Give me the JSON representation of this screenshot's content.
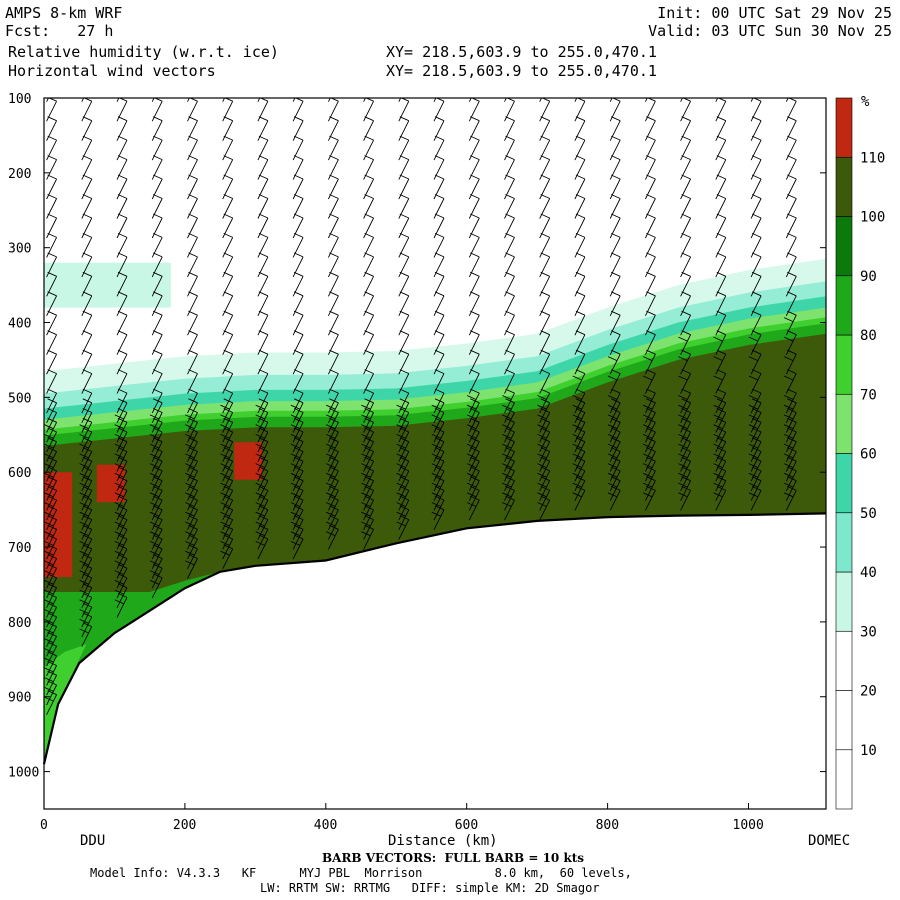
{
  "header": {
    "model": "AMPS 8-km WRF",
    "fcst": "Fcst:   27 h",
    "field1": "Relative humidity (w.r.t. ice)",
    "field2": "Horizontal wind vectors",
    "xy1": "XY= 218.5,603.9 to 255.0,470.1",
    "xy2": "XY= 218.5,603.9 to 255.0,470.1",
    "init": "Init: 00 UTC Sat 29 Nov 25",
    "valid": "Valid: 03 UTC Sun 30 Nov 25"
  },
  "footer": {
    "barb_note": "BARB VECTORS:  FULL BARB = 10 kts",
    "model_info": "Model Info: V4.3.3   KF      MYJ PBL  Morrison          8.0 km,  60 levels,",
    "physics": "LW: RRTM SW: RRTMG   DIFF: simple KM: 2D Smagor"
  },
  "colors": {
    "bands": [
      "#ffffff",
      "#ffffff",
      "#ffffff",
      "#c8f7e6",
      "#7de8cc",
      "#3ed6a8",
      "#7ee36e",
      "#3fcf2f",
      "#1fa81a",
      "#0b7a0b",
      "#3d5a0a",
      "#c02812"
    ]
  },
  "chart_data": {
    "type": "heatmap",
    "title": "Relative humidity (w.r.t. ice)",
    "xlabel": "Distance (km)",
    "ylabel": "",
    "xlim": [
      0,
      1110
    ],
    "ylim": [
      1050,
      100
    ],
    "x_ticks": [
      0,
      200,
      400,
      600,
      800,
      1000
    ],
    "y_ticks": [
      100,
      200,
      300,
      400,
      500,
      600,
      700,
      800,
      900,
      1000
    ],
    "x_tick_labels": [
      "0",
      "200",
      "400",
      "600",
      "800",
      "1000"
    ],
    "y_tick_labels": [
      "100",
      "200",
      "300",
      "400",
      "500",
      "600",
      "700",
      "800",
      "900",
      "1000"
    ],
    "endpoints": {
      "left": "DDU",
      "right": "DOMEC"
    },
    "colorbar": {
      "unit": "%",
      "boundaries": [
        10,
        20,
        30,
        40,
        50,
        60,
        70,
        80,
        90,
        100,
        110
      ],
      "labels": [
        "10",
        "20",
        "30",
        "40",
        "50",
        "60",
        "70",
        "80",
        "90",
        "100",
        "110"
      ]
    },
    "terrain_pressure": [
      [
        0,
        990
      ],
      [
        20,
        910
      ],
      [
        50,
        855
      ],
      [
        100,
        815
      ],
      [
        150,
        785
      ],
      [
        200,
        755
      ],
      [
        250,
        733
      ],
      [
        300,
        725
      ],
      [
        400,
        718
      ],
      [
        500,
        695
      ],
      [
        600,
        675
      ],
      [
        700,
        665
      ],
      [
        800,
        660
      ],
      [
        900,
        658
      ],
      [
        1000,
        657
      ],
      [
        1110,
        655
      ]
    ],
    "inversion_top_pressure": [
      [
        0,
        555
      ],
      [
        100,
        545
      ],
      [
        200,
        535
      ],
      [
        300,
        530
      ],
      [
        400,
        530
      ],
      [
        500,
        528
      ],
      [
        600,
        518
      ],
      [
        700,
        505
      ],
      [
        800,
        470
      ],
      [
        900,
        440
      ],
      [
        1000,
        420
      ],
      [
        1110,
        405
      ]
    ],
    "upper_moist_layer": {
      "x_range": [
        0,
        180
      ],
      "pressure_range": [
        320,
        380
      ],
      "rh_percent": 32
    },
    "boundary_layer_rh_percent": 105,
    "supersaturated_patches": [
      {
        "x_range": [
          0,
          40
        ],
        "pressure_range": [
          600,
          740
        ],
        "rh_percent": 115
      },
      {
        "x_range": [
          75,
          115
        ],
        "pressure_range": [
          590,
          640
        ],
        "rh_percent": 115
      },
      {
        "x_range": [
          270,
          310
        ],
        "pressure_range": [
          560,
          610
        ],
        "rh_percent": 115
      }
    ]
  }
}
